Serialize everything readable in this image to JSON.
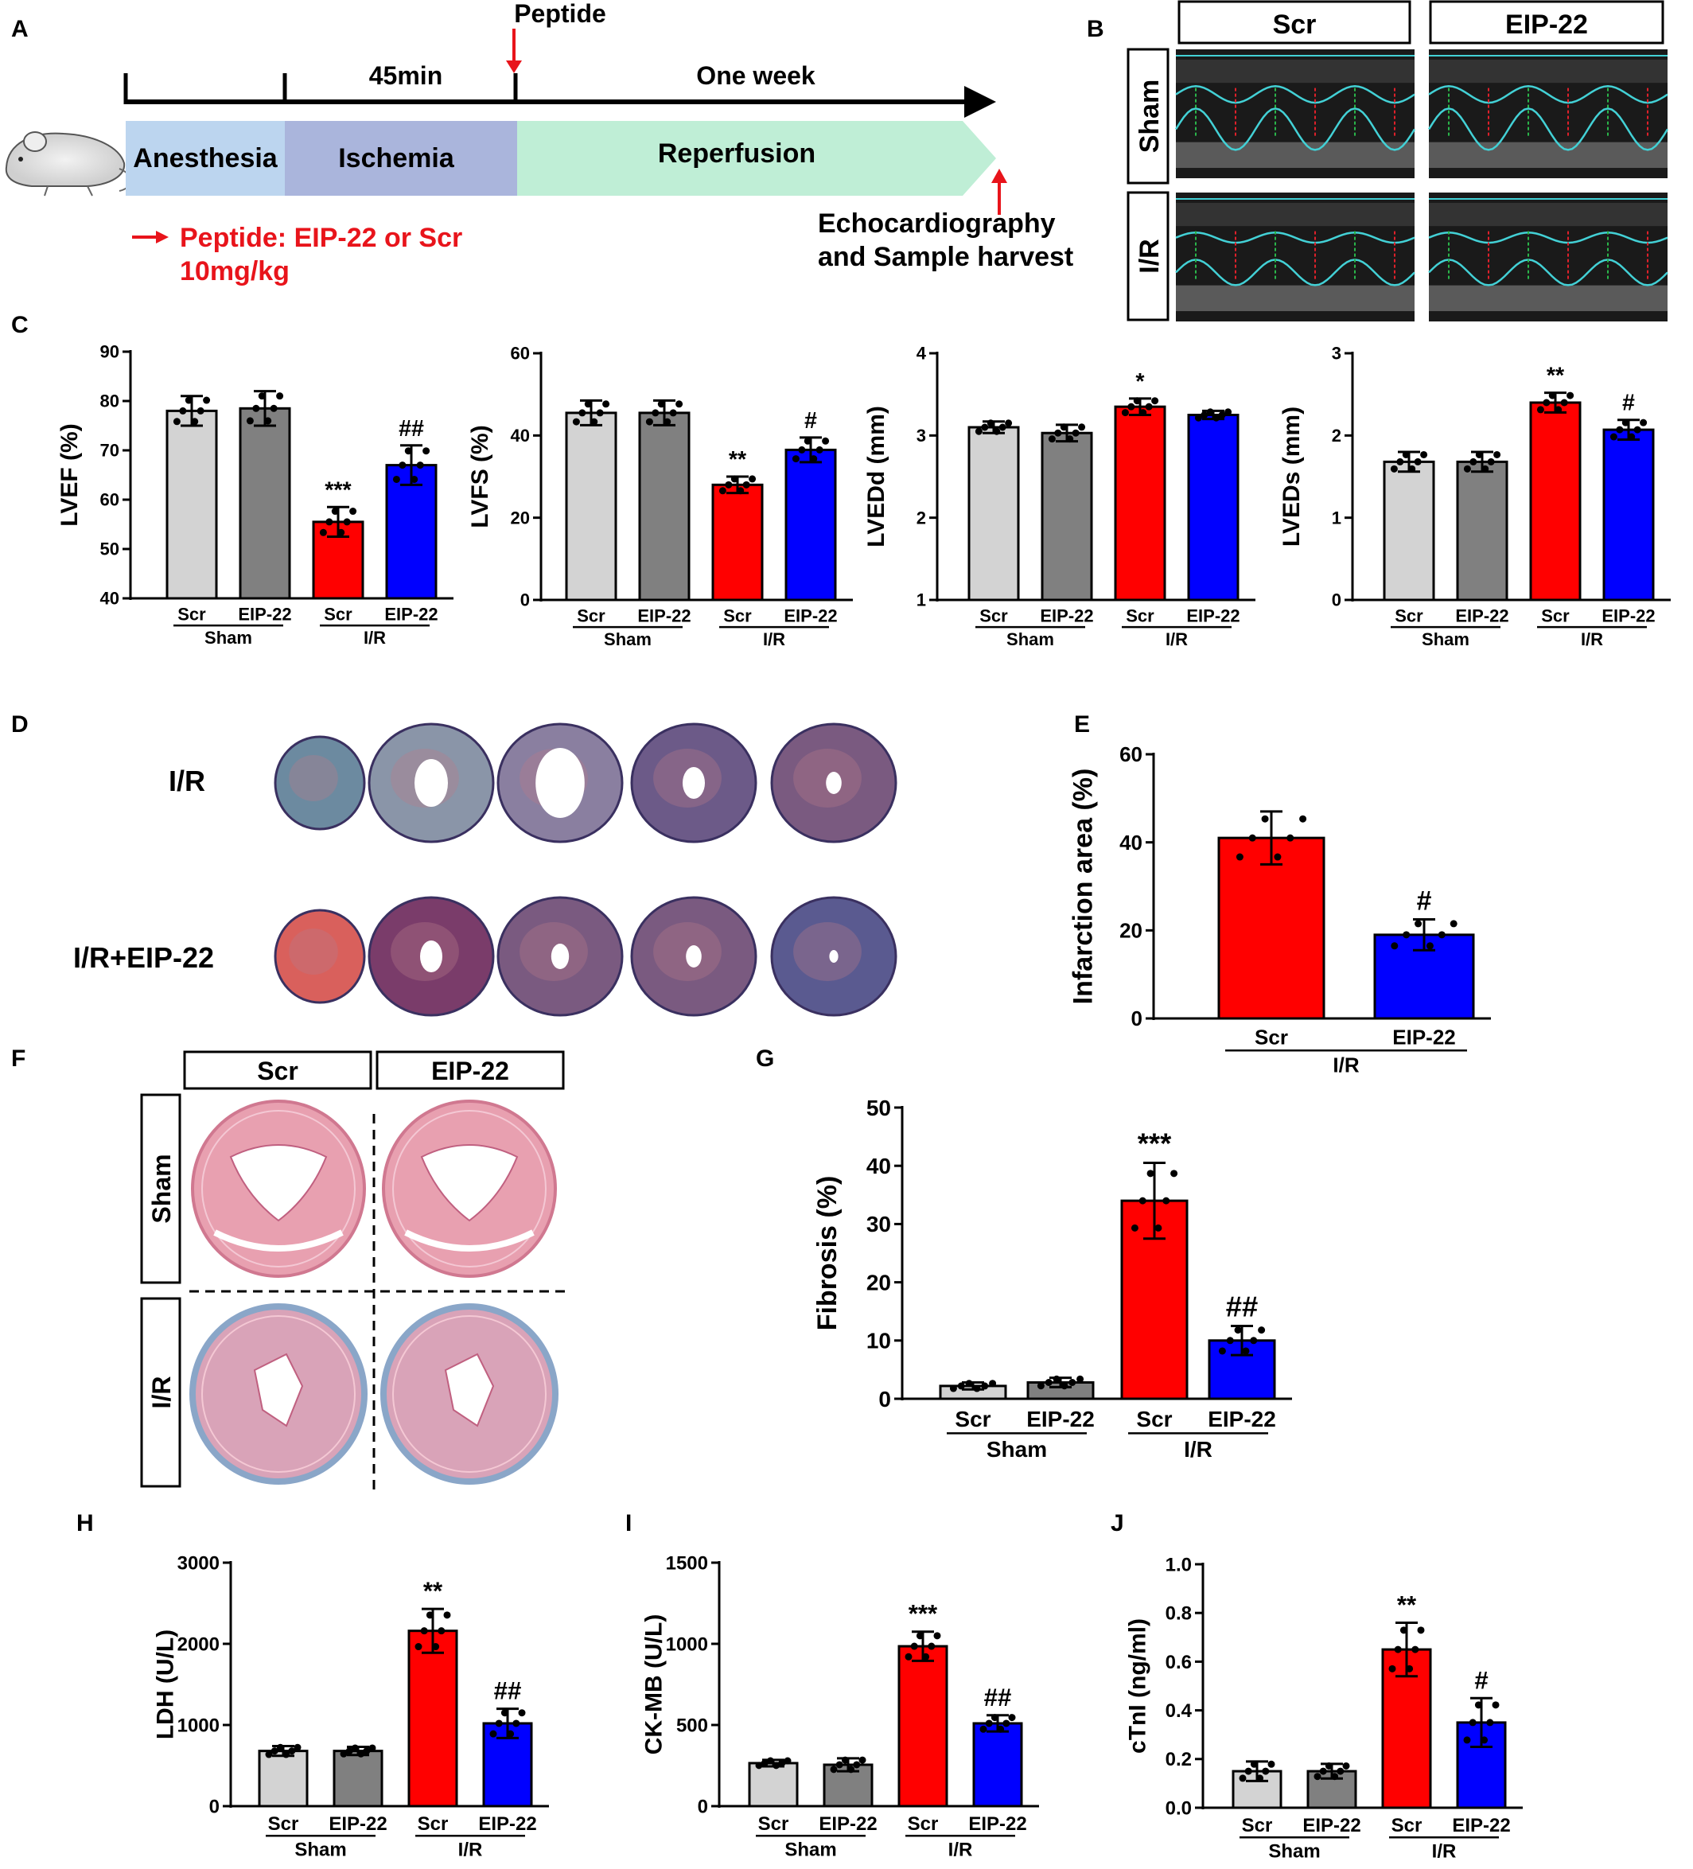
{
  "panel_letters": {
    "A": "A",
    "B": "B",
    "C": "C",
    "D": "D",
    "E": "E",
    "F": "F",
    "G": "G",
    "H": "H",
    "I": "I",
    "J": "J"
  },
  "timeline": {
    "peptide_label": "Peptide",
    "t45": "45min",
    "one_week": "One week",
    "anesthesia": "Anesthesia",
    "ischemia": "Ischemia",
    "reperfusion": "Reperfusion",
    "dose_line1": "Peptide: EIP-22 or Scr",
    "dose_line2": "10mg/kg",
    "end_line1": "Echocardiography",
    "end_line2": "and Sample harvest",
    "colors": {
      "anesthesia": "#bcd5ef",
      "ischemia": "#aab5dc",
      "reperfusion": "#bfeed6",
      "accent": "#e8141b"
    }
  },
  "echo_panel": {
    "col_labels": [
      "Scr",
      "EIP-22"
    ],
    "row_labels": [
      "Sham",
      "I/R"
    ]
  },
  "heart_panel": {
    "row_labels": [
      "I/R",
      "I/R+EIP-22"
    ]
  },
  "histo_panel": {
    "col_labels": [
      "Scr",
      "EIP-22"
    ],
    "row_labels": [
      "Sham",
      "I/R"
    ]
  },
  "group_labels": {
    "sham": "Sham",
    "ir": "I/R"
  },
  "bar_colors": {
    "scr_sham": "#d3d3d3",
    "eip_sham": "#808080",
    "scr_ir": "#ff0000",
    "eip_ir": "#0000ff"
  },
  "chart_data": [
    {
      "id": "lvef",
      "type": "bar",
      "ylabel": "LVEF (%)",
      "ylim": [
        40,
        90
      ],
      "yticks": [
        40,
        50,
        60,
        70,
        80,
        90
      ],
      "categories": [
        "Scr",
        "EIP-22",
        "Scr",
        "EIP-22"
      ],
      "values": [
        78,
        78.5,
        55.5,
        67
      ],
      "errors": [
        3,
        3.5,
        3,
        4
      ],
      "annotations": [
        "",
        "",
        "***",
        "##"
      ]
    },
    {
      "id": "lvfs",
      "type": "bar",
      "ylabel": "LVFS (%)",
      "ylim": [
        0,
        60
      ],
      "yticks": [
        0,
        20,
        40,
        60
      ],
      "categories": [
        "Scr",
        "EIP-22",
        "Scr",
        "EIP-22"
      ],
      "values": [
        45.5,
        45.5,
        28,
        36.5
      ],
      "errors": [
        3,
        3,
        2,
        3
      ],
      "annotations": [
        "",
        "",
        "**",
        "#"
      ]
    },
    {
      "id": "lvedd",
      "type": "bar",
      "ylabel": "LVEDd (mm)",
      "ylim": [
        1,
        4
      ],
      "yticks": [
        1,
        2,
        3,
        4
      ],
      "categories": [
        "Scr",
        "EIP-22",
        "Scr",
        "EIP-22"
      ],
      "values": [
        3.1,
        3.03,
        3.35,
        3.25
      ],
      "errors": [
        0.07,
        0.1,
        0.1,
        0.05
      ],
      "annotations": [
        "",
        "",
        "*",
        ""
      ]
    },
    {
      "id": "lveds",
      "type": "bar",
      "ylabel": "LVEDs (mm)",
      "ylim": [
        0,
        3
      ],
      "yticks": [
        0,
        1,
        2,
        3
      ],
      "categories": [
        "Scr",
        "EIP-22",
        "Scr",
        "EIP-22"
      ],
      "values": [
        1.68,
        1.68,
        2.4,
        2.07
      ],
      "errors": [
        0.12,
        0.12,
        0.12,
        0.12
      ],
      "annotations": [
        "",
        "",
        "**",
        "#"
      ]
    },
    {
      "id": "infarct",
      "type": "bar",
      "ylabel": "Infarction area (%)",
      "ylim": [
        0,
        60
      ],
      "yticks": [
        0,
        20,
        40,
        60
      ],
      "categories": [
        "Scr",
        "EIP-22"
      ],
      "values": [
        41,
        19
      ],
      "errors": [
        6,
        3.5
      ],
      "annotations": [
        "",
        "#"
      ],
      "group": "I/R"
    },
    {
      "id": "fibrosis",
      "type": "bar",
      "ylabel": "Fibrosis (%)",
      "ylim": [
        0,
        50
      ],
      "yticks": [
        0,
        10,
        20,
        30,
        40,
        50
      ],
      "categories": [
        "Scr",
        "EIP-22",
        "Scr",
        "EIP-22"
      ],
      "values": [
        2.2,
        2.8,
        34,
        10
      ],
      "errors": [
        0.6,
        0.8,
        6.5,
        2.5
      ],
      "annotations": [
        "",
        "",
        "***",
        "##"
      ]
    },
    {
      "id": "ldh",
      "type": "bar",
      "ylabel": "LDH (U/L)",
      "ylim": [
        0,
        3000
      ],
      "yticks": [
        0,
        1000,
        2000,
        3000
      ],
      "categories": [
        "Scr",
        "EIP-22",
        "Scr",
        "EIP-22"
      ],
      "values": [
        680,
        680,
        2160,
        1020
      ],
      "errors": [
        60,
        50,
        270,
        180
      ],
      "annotations": [
        "",
        "",
        "**",
        "##"
      ]
    },
    {
      "id": "ckmb",
      "type": "bar",
      "ylabel": "CK-MB (U/L)",
      "ylim": [
        0,
        1500
      ],
      "yticks": [
        0,
        500,
        1000,
        1500
      ],
      "categories": [
        "Scr",
        "EIP-22",
        "Scr",
        "EIP-22"
      ],
      "values": [
        265,
        255,
        985,
        510
      ],
      "errors": [
        20,
        40,
        90,
        50
      ],
      "annotations": [
        "",
        "",
        "***",
        "##"
      ]
    },
    {
      "id": "ctni",
      "type": "bar",
      "ylabel": "cTnI (ng/ml)",
      "ylim": [
        0,
        1.0
      ],
      "yticks": [
        "0.0",
        "0.2",
        "0.4",
        "0.6",
        "0.8",
        "1.0"
      ],
      "categories": [
        "Scr",
        "EIP-22",
        "Scr",
        "EIP-22"
      ],
      "values": [
        0.15,
        0.15,
        0.65,
        0.35
      ],
      "errors": [
        0.04,
        0.03,
        0.11,
        0.1
      ],
      "annotations": [
        "",
        "",
        "**",
        "#"
      ]
    }
  ]
}
